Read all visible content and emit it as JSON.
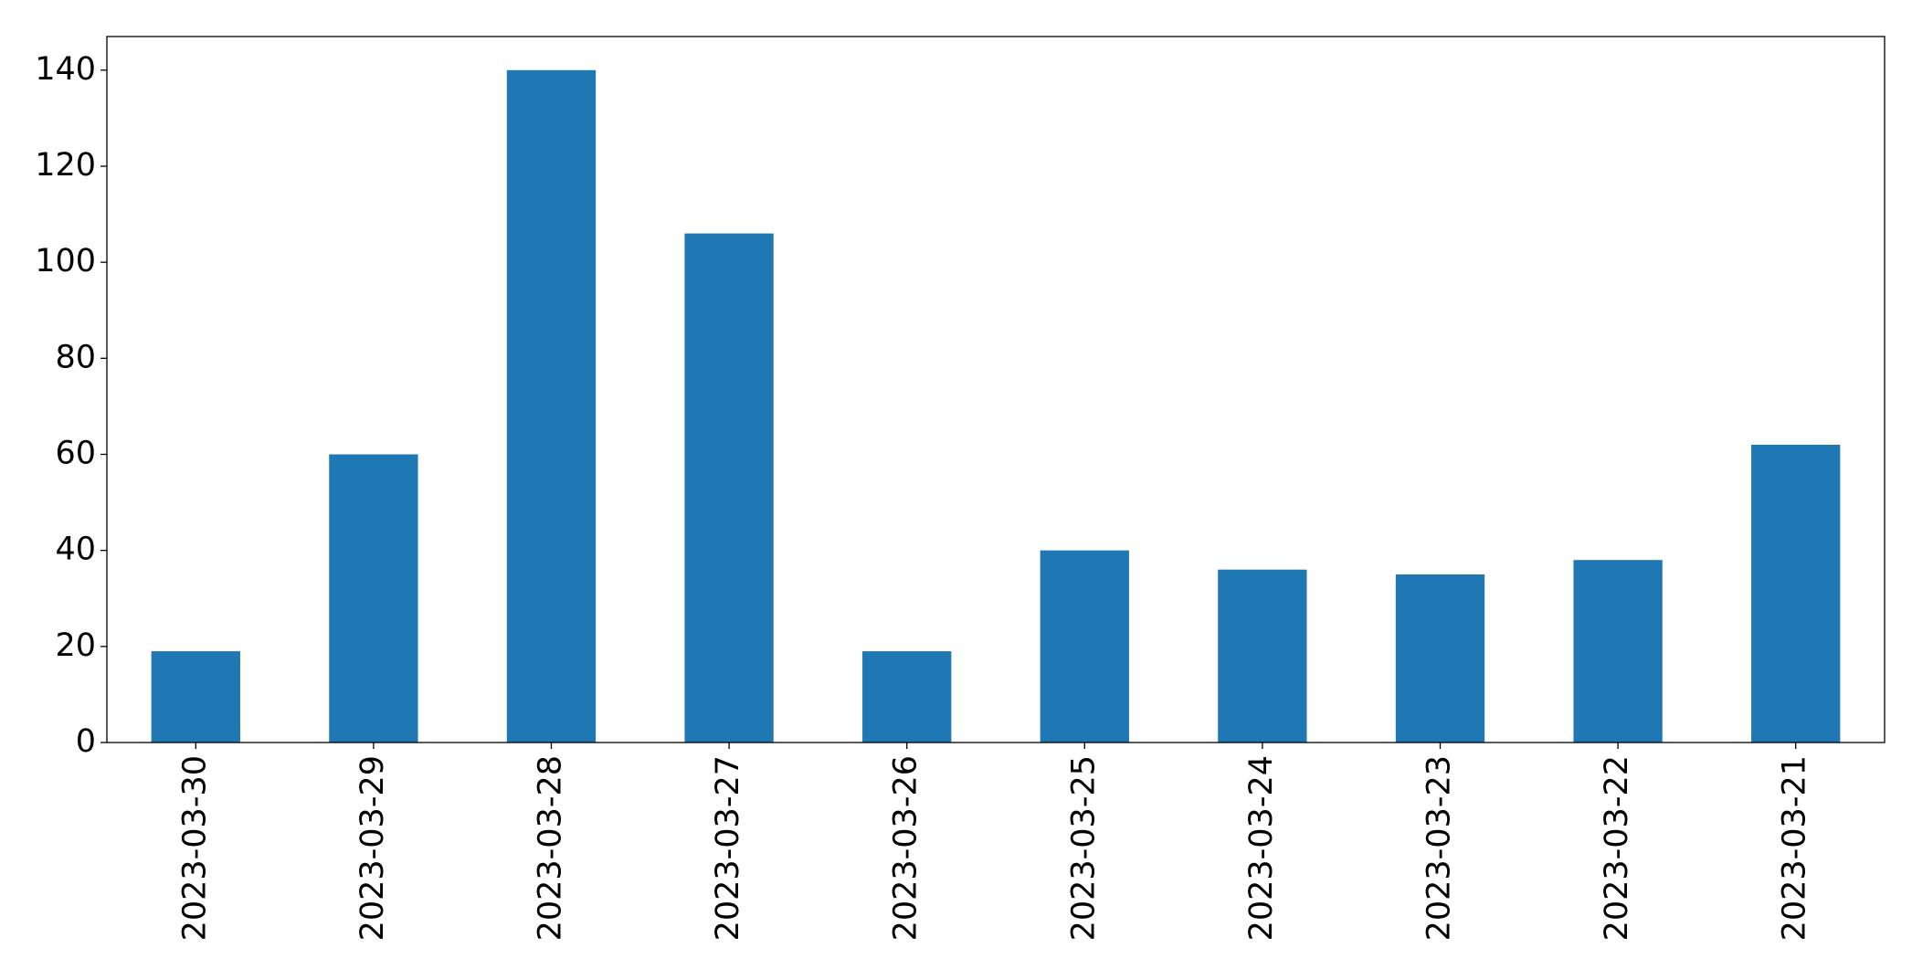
{
  "chart_data": {
    "type": "bar",
    "categories": [
      "2023-03-30",
      "2023-03-29",
      "2023-03-28",
      "2023-03-27",
      "2023-03-26",
      "2023-03-25",
      "2023-03-24",
      "2023-03-23",
      "2023-03-22",
      "2023-03-21"
    ],
    "values": [
      19,
      60,
      140,
      106,
      19,
      40,
      36,
      35,
      38,
      62
    ],
    "color": "#1f77b4",
    "ylim": [
      0,
      147
    ],
    "yticks": [
      0,
      20,
      40,
      60,
      80,
      100,
      120,
      140
    ],
    "grid": false
  }
}
